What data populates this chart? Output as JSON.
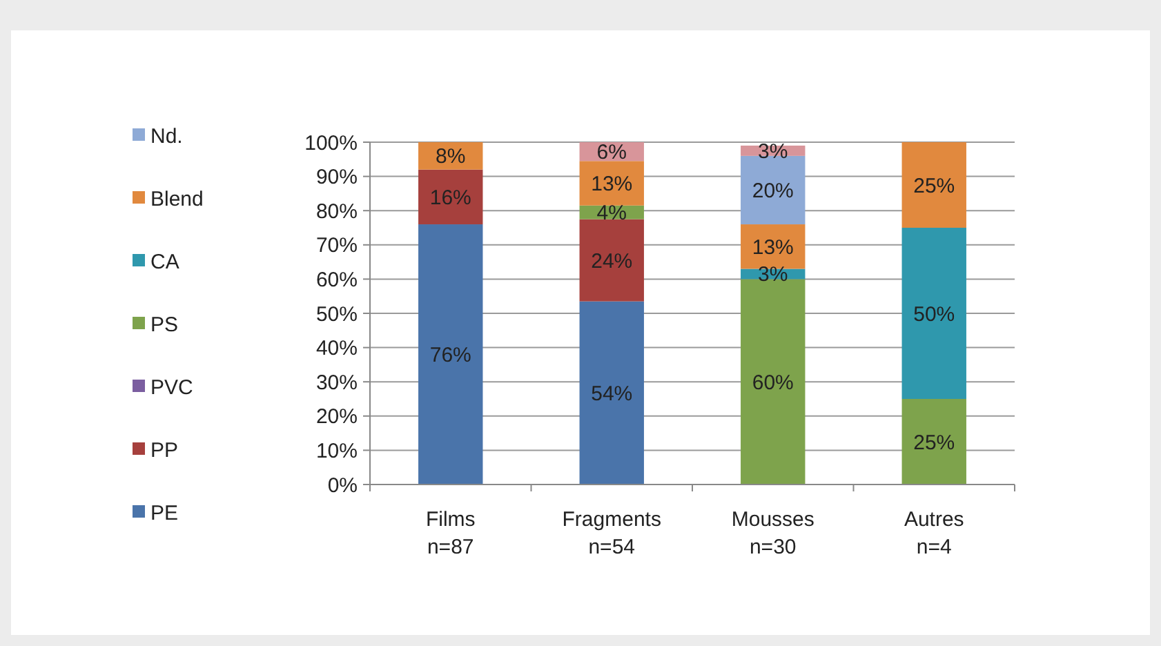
{
  "chart_data": {
    "type": "bar",
    "stacked": true,
    "categories": [
      "Films\nn=87",
      "Fragments\nn=54",
      "Mousses\nn=30",
      "Autres\nn=4"
    ],
    "series": [
      {
        "name": "PE",
        "color": "#4a74aa",
        "values": [
          76,
          53.5,
          null,
          null
        ],
        "value_labels": [
          "76%",
          "54%",
          null,
          null
        ]
      },
      {
        "name": "PP",
        "color": "#a6403d",
        "values": [
          16,
          24,
          null,
          null
        ],
        "value_labels": [
          "16%",
          "24%",
          null,
          null
        ]
      },
      {
        "name": "PVC",
        "color": "#7b5ea0",
        "values": [
          null,
          null,
          null,
          null
        ],
        "value_labels": [
          null,
          null,
          null,
          null
        ]
      },
      {
        "name": "PS",
        "color": "#7ea34c",
        "values": [
          null,
          4,
          60,
          25
        ],
        "value_labels": [
          null,
          "4%",
          "60%",
          "25%"
        ]
      },
      {
        "name": "CA",
        "color": "#2f98ad",
        "values": [
          null,
          null,
          3,
          50
        ],
        "value_labels": [
          null,
          null,
          "3%",
          "50%"
        ]
      },
      {
        "name": "Blend",
        "color": "#e1893e",
        "values": [
          8,
          13,
          13,
          25
        ],
        "value_labels": [
          "8%",
          "13%",
          "13%",
          "25%"
        ]
      },
      {
        "name": "Nd.",
        "color": "#8eaad6",
        "values": [
          null,
          null,
          20,
          null
        ],
        "value_labels": [
          null,
          null,
          "20%",
          null
        ]
      },
      {
        "color": "#d8959a",
        "values": [
          null,
          5.5,
          3,
          null
        ],
        "value_labels": [
          null,
          "6%",
          "3%",
          null
        ]
      }
    ],
    "ylim": [
      0,
      100
    ],
    "yticks": [
      {
        "value": 0,
        "label": "0%"
      },
      {
        "value": 10,
        "label": "10%"
      },
      {
        "value": 20,
        "label": "20%"
      },
      {
        "value": 30,
        "label": "30%"
      },
      {
        "value": 40,
        "label": "40%"
      },
      {
        "value": 50,
        "label": "50%"
      },
      {
        "value": 60,
        "label": "60%"
      },
      {
        "value": 70,
        "label": "70%"
      },
      {
        "value": 80,
        "label": "80%"
      },
      {
        "value": 90,
        "label": "90%"
      },
      {
        "value": 100,
        "label": "100%"
      }
    ],
    "grid": "y",
    "legend": "left"
  }
}
